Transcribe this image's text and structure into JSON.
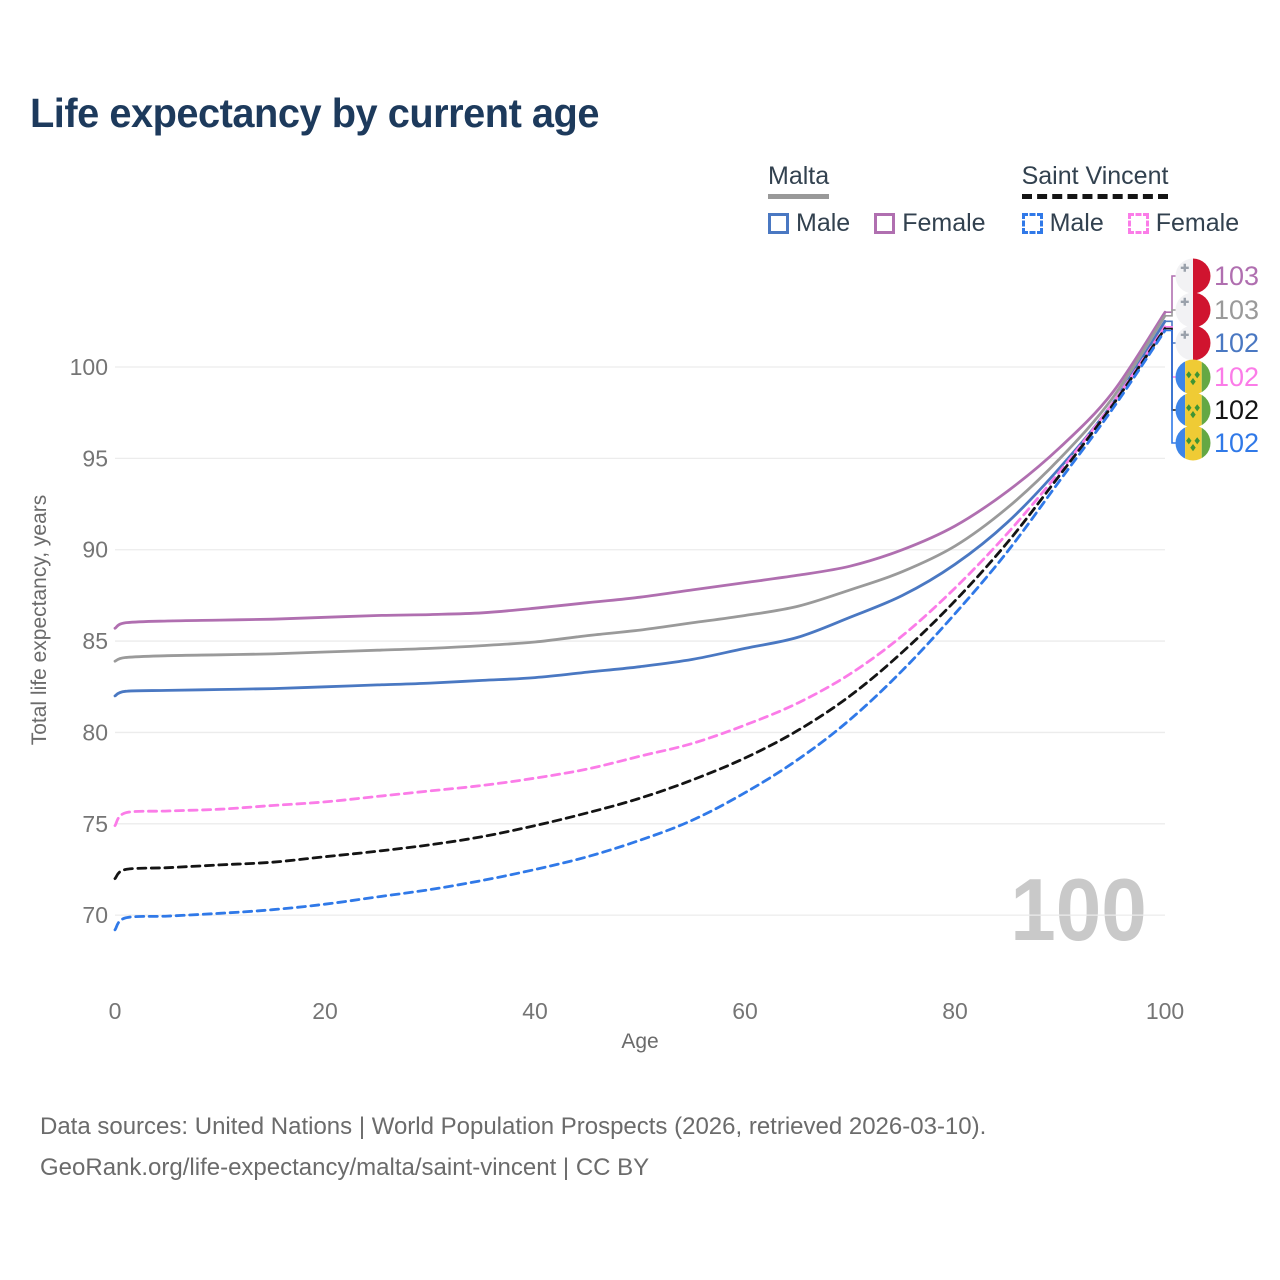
{
  "page": {
    "title": "Life expectancy by current age",
    "watermark": "100"
  },
  "legend": {
    "groups": [
      {
        "name": "Malta",
        "line_style": "solid",
        "underline_color": "#999999",
        "items": [
          {
            "label": "Male",
            "color": "#4a78c2"
          },
          {
            "label": "Female",
            "color": "#b06fb0"
          }
        ]
      },
      {
        "name": "Saint Vincent",
        "line_style": "dashed",
        "underline_color": "#141414",
        "items": [
          {
            "label": "Male",
            "color": "#3079e8"
          },
          {
            "label": "Female",
            "color": "#fb7ce8"
          }
        ]
      }
    ]
  },
  "footer": {
    "line1": "Data sources: United Nations | World Population Prospects (2026, retrieved 2026-03-10).",
    "line2": "GeoRank.org/life-expectancy/malta/saint-vincent | CC BY"
  },
  "chart_data": {
    "type": "line",
    "title": "Life expectancy by current age",
    "xlabel": "Age",
    "ylabel": "Total life expectancy, years",
    "xlim": [
      0,
      100
    ],
    "ylim": [
      67,
      104
    ],
    "x_ticks": [
      0,
      20,
      40,
      60,
      80,
      100
    ],
    "y_ticks": [
      70,
      75,
      80,
      85,
      90,
      95,
      100
    ],
    "grid": "horizontal",
    "legend_position": "top-right",
    "x": [
      0,
      1,
      5,
      10,
      15,
      20,
      25,
      30,
      35,
      40,
      45,
      50,
      55,
      60,
      65,
      70,
      75,
      80,
      85,
      90,
      95,
      100
    ],
    "series": [
      {
        "name": "Malta Female",
        "country": "Malta",
        "sex": "Female",
        "flag": "malta",
        "style": "solid",
        "color": "#b06fb0",
        "end_label": "103",
        "values": [
          85.7,
          86.0,
          86.1,
          86.15,
          86.2,
          86.3,
          86.4,
          86.45,
          86.55,
          86.8,
          87.1,
          87.4,
          87.8,
          88.2,
          88.6,
          89.1,
          90.0,
          91.3,
          93.2,
          95.6,
          98.6,
          103.0
        ]
      },
      {
        "name": "Malta Total",
        "country": "Malta",
        "sex": "Total",
        "flag": "malta",
        "style": "solid",
        "color": "#9a9a9a",
        "end_label": "103",
        "values": [
          83.9,
          84.1,
          84.2,
          84.25,
          84.3,
          84.4,
          84.5,
          84.6,
          84.75,
          84.95,
          85.3,
          85.6,
          86.0,
          86.4,
          86.9,
          87.8,
          88.8,
          90.2,
          92.3,
          95.0,
          98.3,
          102.8
        ]
      },
      {
        "name": "Malta Male",
        "country": "Malta",
        "sex": "Male",
        "flag": "malta",
        "style": "solid",
        "color": "#4a78c2",
        "end_label": "102",
        "values": [
          82.0,
          82.25,
          82.3,
          82.35,
          82.4,
          82.5,
          82.6,
          82.7,
          82.85,
          83.0,
          83.3,
          83.6,
          84.0,
          84.6,
          85.2,
          86.3,
          87.5,
          89.2,
          91.5,
          94.5,
          98.0,
          102.5
        ]
      },
      {
        "name": "Saint Vincent Female",
        "country": "Saint Vincent",
        "sex": "Female",
        "flag": "saint-vincent",
        "style": "dashed",
        "color": "#fb7ce8",
        "end_label": "102",
        "values": [
          74.9,
          75.6,
          75.7,
          75.8,
          76.0,
          76.2,
          76.5,
          76.8,
          77.1,
          77.5,
          78.0,
          78.7,
          79.4,
          80.4,
          81.6,
          83.2,
          85.3,
          87.9,
          90.9,
          94.3,
          98.0,
          102.2
        ]
      },
      {
        "name": "Saint Vincent Total",
        "country": "Saint Vincent",
        "sex": "Total",
        "flag": "saint-vincent",
        "style": "dashed",
        "color": "#141414",
        "end_label": "102",
        "values": [
          72.0,
          72.5,
          72.6,
          72.75,
          72.9,
          73.2,
          73.5,
          73.85,
          74.3,
          74.9,
          75.6,
          76.4,
          77.4,
          78.6,
          80.1,
          82.0,
          84.4,
          87.2,
          90.4,
          94.1,
          97.9,
          102.1
        ]
      },
      {
        "name": "Saint Vincent Male",
        "country": "Saint Vincent",
        "sex": "Male",
        "flag": "saint-vincent",
        "style": "dashed",
        "color": "#3079e8",
        "end_label": "102",
        "values": [
          69.2,
          69.85,
          69.95,
          70.1,
          70.3,
          70.6,
          71.0,
          71.4,
          71.9,
          72.5,
          73.2,
          74.1,
          75.2,
          76.7,
          78.5,
          80.7,
          83.4,
          86.5,
          89.9,
          93.8,
          97.7,
          102.0
        ]
      }
    ]
  }
}
